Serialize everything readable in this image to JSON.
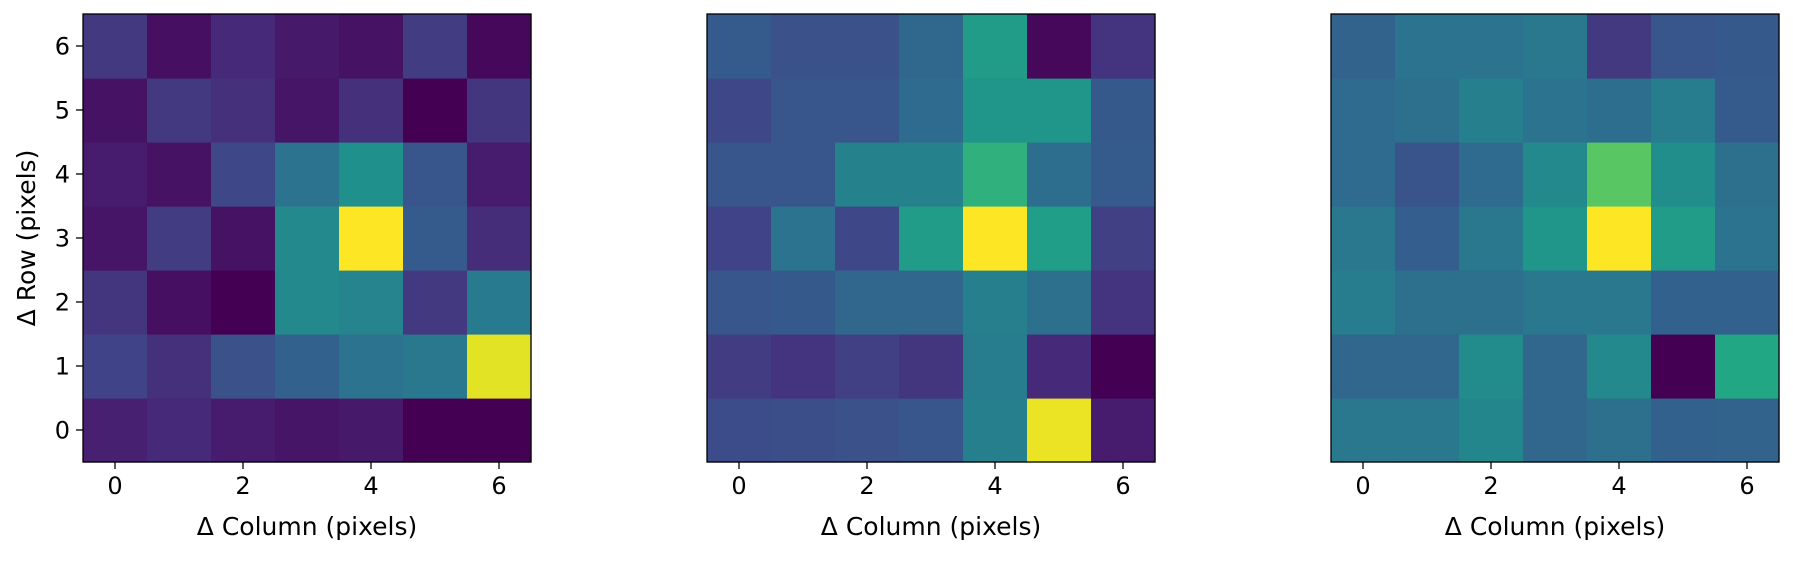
{
  "chart_data": [
    {
      "type": "heatmap",
      "xlabel": "Δ Column (pixels)",
      "ylabel": "Δ Row (pixels)",
      "x_ticks": [
        "0",
        "2",
        "4",
        "6"
      ],
      "y_ticks": [
        "0",
        "1",
        "2",
        "3",
        "4",
        "5",
        "6"
      ],
      "colormap": "viridis",
      "value_scale": "normalized 0-1",
      "rows_bottom_to_top": [
        [
          0.09,
          0.12,
          0.08,
          0.06,
          0.07,
          0.0,
          0.0
        ],
        [
          0.2,
          0.14,
          0.25,
          0.31,
          0.38,
          0.4,
          0.96
        ],
        [
          0.16,
          0.04,
          0.0,
          0.47,
          0.45,
          0.17,
          0.41
        ],
        [
          0.06,
          0.18,
          0.05,
          0.47,
          1.0,
          0.29,
          0.13
        ],
        [
          0.08,
          0.05,
          0.22,
          0.38,
          0.5,
          0.27,
          0.08
        ],
        [
          0.05,
          0.17,
          0.14,
          0.06,
          0.14,
          0.0,
          0.16
        ],
        [
          0.17,
          0.04,
          0.12,
          0.07,
          0.05,
          0.18,
          0.02
        ]
      ]
    },
    {
      "type": "heatmap",
      "xlabel": "Δ Column (pixels)",
      "ylabel": "",
      "x_ticks": [
        "0",
        "2",
        "4",
        "6"
      ],
      "y_ticks": [],
      "colormap": "viridis",
      "value_scale": "normalized 0-1",
      "rows_bottom_to_top": [
        [
          0.23,
          0.24,
          0.25,
          0.27,
          0.43,
          0.97,
          0.08
        ],
        [
          0.18,
          0.15,
          0.19,
          0.16,
          0.42,
          0.12,
          0.0
        ],
        [
          0.27,
          0.28,
          0.33,
          0.33,
          0.43,
          0.37,
          0.15
        ],
        [
          0.2,
          0.38,
          0.22,
          0.55,
          1.0,
          0.56,
          0.19
        ],
        [
          0.27,
          0.27,
          0.44,
          0.44,
          0.64,
          0.36,
          0.29
        ],
        [
          0.22,
          0.27,
          0.27,
          0.35,
          0.52,
          0.52,
          0.28
        ],
        [
          0.29,
          0.25,
          0.25,
          0.34,
          0.55,
          0.02,
          0.15
        ]
      ]
    },
    {
      "type": "heatmap",
      "xlabel": "Δ Column (pixels)",
      "ylabel": "",
      "x_ticks": [
        "0",
        "2",
        "4",
        "6"
      ],
      "y_ticks": [],
      "colormap": "viridis",
      "value_scale": "normalized 0-1",
      "rows_bottom_to_top": [
        [
          0.4,
          0.4,
          0.46,
          0.33,
          0.37,
          0.31,
          0.32
        ],
        [
          0.33,
          0.33,
          0.48,
          0.33,
          0.47,
          0.0,
          0.6
        ],
        [
          0.42,
          0.37,
          0.37,
          0.4,
          0.4,
          0.31,
          0.31
        ],
        [
          0.4,
          0.3,
          0.4,
          0.52,
          1.0,
          0.55,
          0.38
        ],
        [
          0.35,
          0.26,
          0.35,
          0.47,
          0.74,
          0.49,
          0.37
        ],
        [
          0.35,
          0.37,
          0.43,
          0.38,
          0.36,
          0.42,
          0.29
        ],
        [
          0.32,
          0.38,
          0.38,
          0.4,
          0.17,
          0.27,
          0.28
        ]
      ]
    }
  ]
}
